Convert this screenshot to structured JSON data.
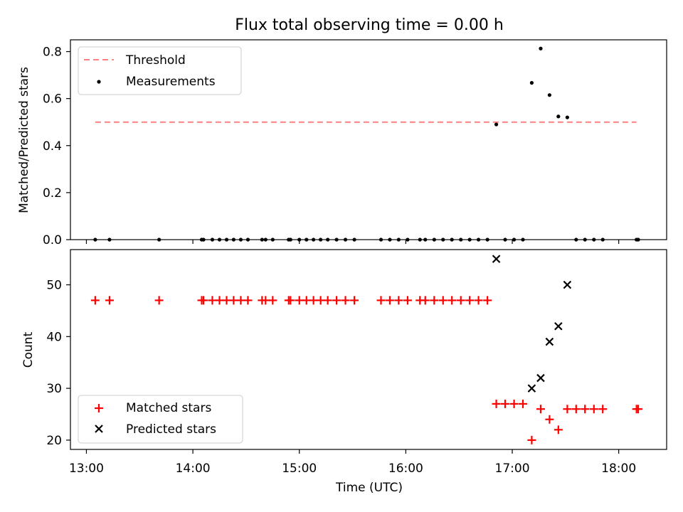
{
  "chart_data": [
    {
      "type": "scatter",
      "title": "Flux total observing time = 0.00 h",
      "xlabel": "",
      "ylabel": "Matched/Predicted stars",
      "ylim": [
        0,
        0.85
      ],
      "yticks": [
        "0.0",
        "0.2",
        "0.4",
        "0.6",
        "0.8"
      ],
      "legend_position": "top-left",
      "threshold": {
        "name": "Threshold",
        "value": 0.5,
        "x_start": 13.083,
        "x_end": 18.167,
        "color": "#ff8080"
      },
      "series": [
        {
          "name": "Measurements",
          "color": "#000000",
          "x": [
            13.083,
            13.217,
            13.683,
            14.083,
            14.1,
            14.183,
            14.25,
            14.317,
            14.383,
            14.45,
            14.517,
            14.65,
            14.683,
            14.75,
            14.9,
            14.917,
            15.0,
            15.067,
            15.133,
            15.2,
            15.267,
            15.35,
            15.433,
            15.517,
            15.767,
            15.85,
            15.933,
            16.017,
            16.133,
            16.183,
            16.267,
            16.35,
            16.433,
            16.517,
            16.6,
            16.683,
            16.767,
            16.85,
            16.933,
            17.017,
            17.1,
            17.183,
            17.267,
            17.35,
            17.433,
            17.517,
            17.6,
            17.683,
            17.767,
            17.85,
            18.167,
            18.183
          ],
          "y": [
            0,
            0,
            0,
            0,
            0,
            0,
            0,
            0,
            0,
            0,
            0,
            0,
            0,
            0,
            0,
            0,
            0,
            0,
            0,
            0,
            0,
            0,
            0,
            0,
            0,
            0,
            0,
            0,
            0,
            0,
            0,
            0,
            0,
            0,
            0,
            0,
            0,
            0.49,
            0,
            0,
            0,
            0.667,
            0.813,
            0.615,
            0.524,
            0.52,
            0,
            0,
            0,
            0,
            0,
            0
          ]
        }
      ]
    },
    {
      "type": "scatter",
      "title": "",
      "xlabel": "Time (UTC)",
      "ylabel": "Count",
      "ylim": [
        18.2,
        56.8
      ],
      "yticks": [
        "20",
        "30",
        "40",
        "50"
      ],
      "xlim": [
        12.85,
        18.45
      ],
      "xticks": [
        "13:00",
        "14:00",
        "15:00",
        "16:00",
        "17:00",
        "18:00"
      ],
      "legend_position": "bottom-left",
      "series": [
        {
          "name": "Matched stars",
          "marker": "plus",
          "color": "#ff0000",
          "x": [
            13.083,
            13.217,
            13.683,
            14.083,
            14.1,
            14.183,
            14.25,
            14.317,
            14.383,
            14.45,
            14.517,
            14.65,
            14.683,
            14.75,
            14.9,
            14.917,
            15.0,
            15.067,
            15.133,
            15.2,
            15.267,
            15.35,
            15.433,
            15.517,
            15.767,
            15.85,
            15.933,
            16.017,
            16.133,
            16.183,
            16.267,
            16.35,
            16.433,
            16.517,
            16.6,
            16.683,
            16.767,
            16.85,
            16.933,
            17.017,
            17.1,
            17.183,
            17.267,
            17.35,
            17.433,
            17.517,
            17.6,
            17.683,
            17.767,
            17.85,
            18.167,
            18.183
          ],
          "y": [
            47,
            47,
            47,
            47,
            47,
            47,
            47,
            47,
            47,
            47,
            47,
            47,
            47,
            47,
            47,
            47,
            47,
            47,
            47,
            47,
            47,
            47,
            47,
            47,
            47,
            47,
            47,
            47,
            47,
            47,
            47,
            47,
            47,
            47,
            47,
            47,
            47,
            27,
            27,
            27,
            27,
            20,
            26,
            24,
            22,
            26,
            26,
            26,
            26,
            26,
            26,
            26
          ]
        },
        {
          "name": "Predicted stars",
          "marker": "x",
          "color": "#000000",
          "x": [
            16.85,
            17.183,
            17.267,
            17.35,
            17.433,
            17.517
          ],
          "y": [
            55,
            30,
            32,
            39,
            42,
            50
          ]
        }
      ]
    }
  ]
}
